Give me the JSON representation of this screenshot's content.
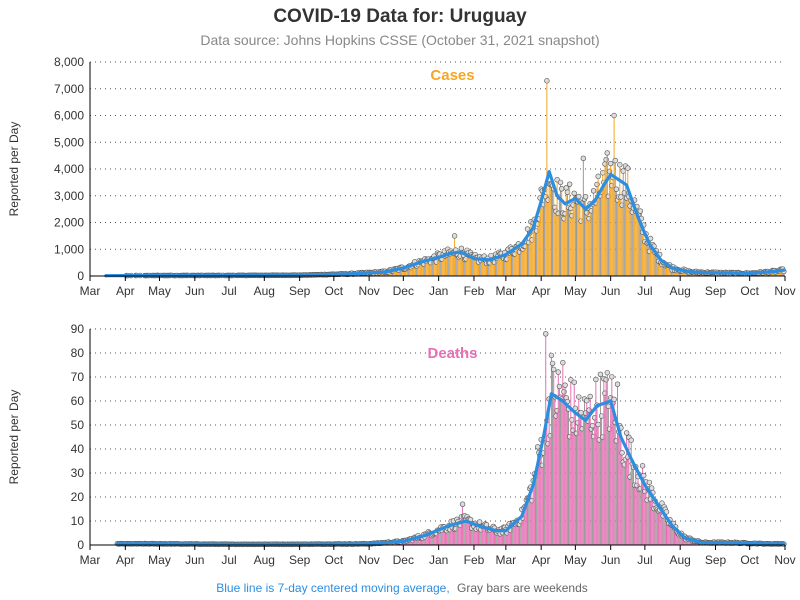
{
  "title": "COVID-19 Data for: Uruguay",
  "subtitle": "Data source: Johns Hopkins CSSE (October 31, 2021 snapshot)",
  "footnote": {
    "blue_part": "Blue line is 7-day centered moving average,",
    "gray_part": "Gray bars are weekends"
  },
  "colors": {
    "cases": "#F5A623",
    "deaths": "#E76FB4",
    "average_line": "#2D8EE0",
    "weekend": "#999999"
  },
  "chart_data": [
    {
      "type": "bar",
      "panel_title": "Cases",
      "ylabel": "Reported per Day",
      "ylim": [
        0,
        8000
      ],
      "y_ticks": [
        "0",
        "1,000",
        "2,000",
        "3,000",
        "4,000",
        "5,000",
        "6,000",
        "7,000",
        "8,000"
      ],
      "y_tick_values": [
        0,
        1000,
        2000,
        3000,
        4000,
        5000,
        6000,
        7000,
        8000
      ],
      "x_ticks": [
        "Mar",
        "Apr",
        "May",
        "Jun",
        "Jul",
        "Aug",
        "Sep",
        "Oct",
        "Nov",
        "Dec",
        "Jan",
        "Feb",
        "Mar",
        "Apr",
        "May",
        "Jun",
        "Jul",
        "Aug",
        "Sep",
        "Oct",
        "Nov"
      ],
      "x_range": [
        "2020-03-01",
        "2021-11-01"
      ],
      "grid": "horizontal dotted",
      "series": [
        {
          "name": "Blue line is 7-day centered moving average",
          "x": [
            "2020-03-15",
            "2020-05-01",
            "2020-07-01",
            "2020-09-01",
            "2020-10-15",
            "2020-11-15",
            "2020-12-01",
            "2020-12-15",
            "2021-01-01",
            "2021-01-12",
            "2021-01-20",
            "2021-02-01",
            "2021-02-15",
            "2021-03-01",
            "2021-03-15",
            "2021-03-25",
            "2021-04-01",
            "2021-04-08",
            "2021-04-15",
            "2021-04-22",
            "2021-05-01",
            "2021-05-10",
            "2021-05-18",
            "2021-05-26",
            "2021-06-01",
            "2021-06-08",
            "2021-06-15",
            "2021-06-25",
            "2021-07-05",
            "2021-07-15",
            "2021-07-25",
            "2021-08-10",
            "2021-09-01",
            "2021-10-01",
            "2021-10-25",
            "2021-10-31"
          ],
          "values": [
            10,
            20,
            20,
            30,
            80,
            150,
            300,
            500,
            700,
            850,
            900,
            650,
            600,
            800,
            1200,
            1800,
            2800,
            3900,
            3000,
            2700,
            2900,
            2500,
            2800,
            3400,
            3800,
            3600,
            3400,
            2200,
            1200,
            600,
            300,
            150,
            120,
            100,
            180,
            220
          ]
        }
      ],
      "notable_spikes": [
        {
          "x": "2021-04-06",
          "value": 7300
        },
        {
          "x": "2021-06-04",
          "value": 6000
        },
        {
          "x": "2021-05-29",
          "value": 4600
        },
        {
          "x": "2021-05-08",
          "value": 4400
        },
        {
          "x": "2021-01-15",
          "value": 1500
        }
      ]
    },
    {
      "type": "bar",
      "panel_title": "Deaths",
      "ylabel": "Reported per Day",
      "ylim": [
        0,
        90
      ],
      "y_ticks": [
        "0",
        "10",
        "20",
        "30",
        "40",
        "50",
        "60",
        "70",
        "80",
        "90"
      ],
      "y_tick_values": [
        0,
        10,
        20,
        30,
        40,
        50,
        60,
        70,
        80,
        90
      ],
      "x_ticks": [
        "Mar",
        "Apr",
        "May",
        "Jun",
        "Jul",
        "Aug",
        "Sep",
        "Oct",
        "Nov",
        "Dec",
        "Jan",
        "Feb",
        "Mar",
        "Apr",
        "May",
        "Jun",
        "Jul",
        "Aug",
        "Sep",
        "Oct",
        "Nov"
      ],
      "x_range": [
        "2020-03-01",
        "2021-11-01"
      ],
      "grid": "horizontal dotted",
      "series": [
        {
          "name": "Blue line is 7-day centered moving average",
          "x": [
            "2020-03-25",
            "2020-05-01",
            "2020-07-01",
            "2020-09-01",
            "2020-11-01",
            "2020-12-01",
            "2020-12-20",
            "2021-01-10",
            "2021-01-25",
            "2021-02-05",
            "2021-02-20",
            "2021-03-01",
            "2021-03-15",
            "2021-03-25",
            "2021-04-03",
            "2021-04-10",
            "2021-04-20",
            "2021-05-01",
            "2021-05-10",
            "2021-05-20",
            "2021-06-01",
            "2021-06-10",
            "2021-06-20",
            "2021-07-01",
            "2021-07-15",
            "2021-07-25",
            "2021-08-05",
            "2021-08-20",
            "2021-09-15",
            "2021-10-15",
            "2021-10-31"
          ],
          "values": [
            0.5,
            0.5,
            0.3,
            0.3,
            0.5,
            1.5,
            4,
            8,
            10,
            8,
            6,
            6,
            12,
            25,
            45,
            63,
            60,
            55,
            52,
            58,
            60,
            45,
            35,
            25,
            15,
            8,
            3,
            1,
            1,
            0.5,
            0.5
          ]
        }
      ],
      "notable_spikes": [
        {
          "x": "2021-04-05",
          "value": 88
        },
        {
          "x": "2021-04-10",
          "value": 79
        },
        {
          "x": "2021-04-20",
          "value": 76
        },
        {
          "x": "2021-06-07",
          "value": 67
        },
        {
          "x": "2021-01-22",
          "value": 17
        }
      ]
    }
  ]
}
